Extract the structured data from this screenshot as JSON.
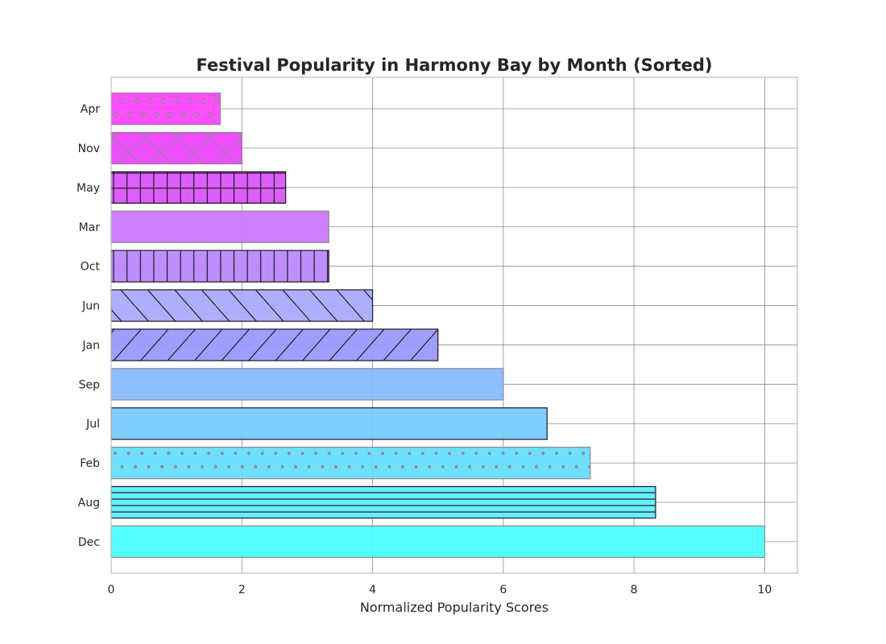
{
  "chart_data": {
    "type": "bar",
    "orientation": "horizontal",
    "title": "Festival Popularity in Harmony Bay by Month (Sorted)",
    "xlabel": "Normalized Popularity Scores",
    "ylabel": "",
    "xlim": [
      0,
      10.5
    ],
    "x_ticks": [
      0,
      2,
      4,
      6,
      8,
      10
    ],
    "grid": true,
    "categories": [
      "Dec",
      "Aug",
      "Feb",
      "Jul",
      "Sep",
      "Jan",
      "Jun",
      "Oct",
      "Mar",
      "May",
      "Nov",
      "Apr"
    ],
    "values": [
      10.0,
      8.33,
      7.33,
      6.67,
      6.0,
      5.0,
      4.0,
      3.33,
      3.33,
      2.67,
      2.0,
      1.67
    ],
    "colors": [
      "#4dffff",
      "#5cefff",
      "#66ddff",
      "#77ccff",
      "#88bbff",
      "#9999ff",
      "#aaaaff",
      "#bb88ff",
      "#cc77ff",
      "#dd55ff",
      "#ee44ff",
      "#ff44ff"
    ],
    "hatches": [
      "none",
      "horizontal",
      "dots",
      "none",
      "none",
      "forward-diagonal",
      "back-diagonal",
      "vertical",
      "none",
      "grid",
      "crosshatch",
      "circles"
    ],
    "edges": [
      "gray",
      "dark",
      "gray",
      "dark",
      "gray",
      "dark",
      "dark",
      "dark",
      "gray",
      "dark",
      "gray",
      "gray"
    ]
  }
}
